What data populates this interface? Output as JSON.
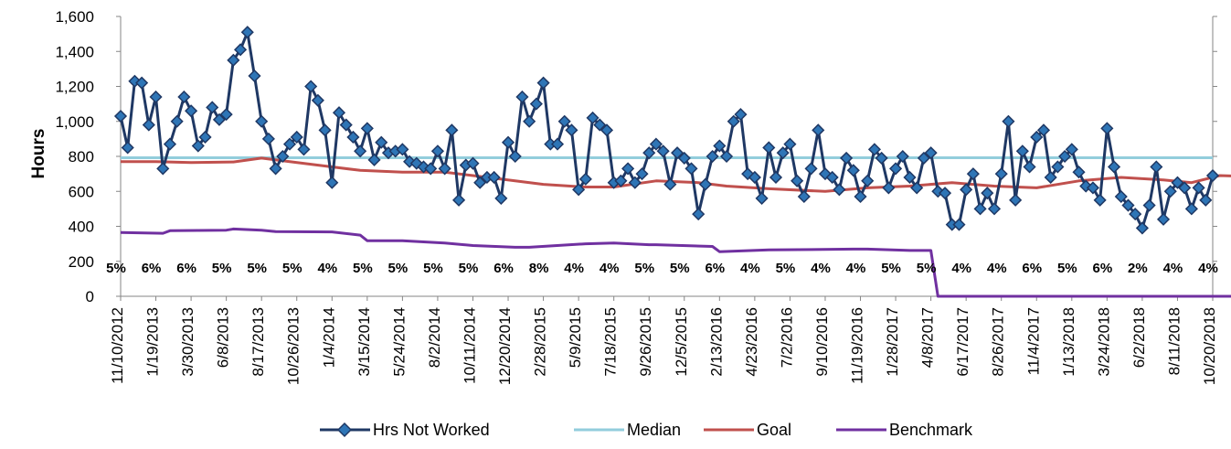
{
  "chart_data": {
    "type": "line",
    "title": "",
    "ylabel": "Hours",
    "xlabel": "",
    "ylim": [
      0,
      1600
    ],
    "yticks": [
      0,
      200,
      400,
      600,
      800,
      1000,
      1200,
      1400,
      1600
    ],
    "ytick_labels": [
      "0",
      "200",
      "400",
      "600",
      "800",
      "1,000",
      "1,200",
      "1,400",
      "1,600"
    ],
    "x_tick_labels": [
      "11/10/2012",
      "1/19/2013",
      "3/30/2013",
      "6/8/2013",
      "8/17/2013",
      "10/26/2013",
      "1/4/2014",
      "3/15/2014",
      "5/24/2014",
      "8/2/2014",
      "10/11/2014",
      "12/20/2014",
      "2/28/2015",
      "5/9/2015",
      "7/18/2015",
      "9/26/2015",
      "12/5/2015",
      "2/13/2016",
      "4/23/2016",
      "7/2/2016",
      "9/10/2016",
      "11/19/2016",
      "1/28/2017",
      "4/8/2017",
      "6/17/2017",
      "8/26/2017",
      "11/4/2017",
      "1/13/2018",
      "3/24/2018",
      "6/2/2018",
      "8/11/2018",
      "10/20/2018"
    ],
    "pct_labels": [
      "5%",
      "6%",
      "6%",
      "5%",
      "5%",
      "5%",
      "4%",
      "5%",
      "5%",
      "5%",
      "5%",
      "6%",
      "8%",
      "4%",
      "4%",
      "5%",
      "5%",
      "6%",
      "4%",
      "5%",
      "4%",
      "4%",
      "5%",
      "5%",
      "4%",
      "4%",
      "6%",
      "5%",
      "6%",
      "2%",
      "4%",
      "4%"
    ],
    "series": [
      {
        "name": "Hrs Not Worked",
        "color": "#1f3864",
        "marker": "diamond",
        "values": [
          1030,
          850,
          1230,
          1220,
          980,
          1140,
          730,
          870,
          1000,
          1140,
          1060,
          860,
          910,
          1080,
          1010,
          1040,
          1350,
          1410,
          1510,
          1260,
          1000,
          900,
          730,
          800,
          870,
          910,
          840,
          1200,
          1120,
          950,
          650,
          1050,
          980,
          910,
          830,
          960,
          780,
          880,
          820,
          830,
          840,
          770,
          760,
          740,
          730,
          830,
          730,
          950,
          550,
          750,
          760,
          650,
          680,
          680,
          560,
          880,
          800,
          1140,
          1000,
          1100,
          1220,
          870,
          870,
          1000,
          950,
          610,
          670,
          1020,
          980,
          950,
          650,
          660,
          730,
          650,
          700,
          820,
          870,
          830,
          640,
          820,
          790,
          730,
          470,
          640,
          800,
          860,
          800,
          1000,
          1040,
          700,
          680,
          560,
          850,
          680,
          820,
          870,
          660,
          570,
          730,
          950,
          700,
          680,
          610,
          790,
          720,
          570,
          660,
          840,
          790,
          620,
          730,
          800,
          680,
          620,
          790,
          820,
          600,
          590,
          410,
          410,
          610,
          700,
          500,
          590,
          500,
          700,
          1000,
          550,
          830,
          740,
          910,
          950,
          680,
          740,
          800,
          840,
          710,
          630,
          620,
          550,
          960,
          740,
          570,
          520,
          470,
          390,
          520,
          740,
          440,
          600,
          650,
          620,
          500,
          620,
          550,
          690
        ]
      },
      {
        "name": "Median",
        "color": "#92cddc",
        "values": [
          792,
          792
        ]
      },
      {
        "name": "Goal",
        "color": "#c0504d",
        "x": [
          0,
          5,
          10,
          16,
          20,
          24,
          30,
          34,
          40,
          46,
          50,
          56,
          60,
          66,
          70,
          76,
          82,
          86,
          92,
          100,
          106,
          112,
          118,
          124,
          130,
          136,
          142,
          148,
          152,
          156,
          160
        ],
        "values": [
          770,
          770,
          765,
          768,
          790,
          770,
          740,
          720,
          710,
          710,
          690,
          660,
          640,
          625,
          625,
          660,
          650,
          630,
          615,
          600,
          620,
          630,
          650,
          630,
          620,
          660,
          680,
          665,
          650,
          690,
          685
        ]
      },
      {
        "name": "Benchmark",
        "color": "#7030a0",
        "x": [
          0,
          6,
          7,
          15,
          16,
          20,
          22,
          30,
          34,
          35,
          40,
          46,
          50,
          56,
          58,
          66,
          70,
          75,
          76,
          84,
          85,
          92,
          104,
          106,
          112,
          115,
          116,
          160
        ],
        "values": [
          365,
          360,
          375,
          378,
          385,
          378,
          370,
          368,
          350,
          318,
          318,
          305,
          290,
          280,
          280,
          300,
          305,
          295,
          295,
          285,
          255,
          265,
          270,
          270,
          262,
          262,
          0,
          0
        ]
      }
    ],
    "legend": "bottom",
    "grid": false
  }
}
